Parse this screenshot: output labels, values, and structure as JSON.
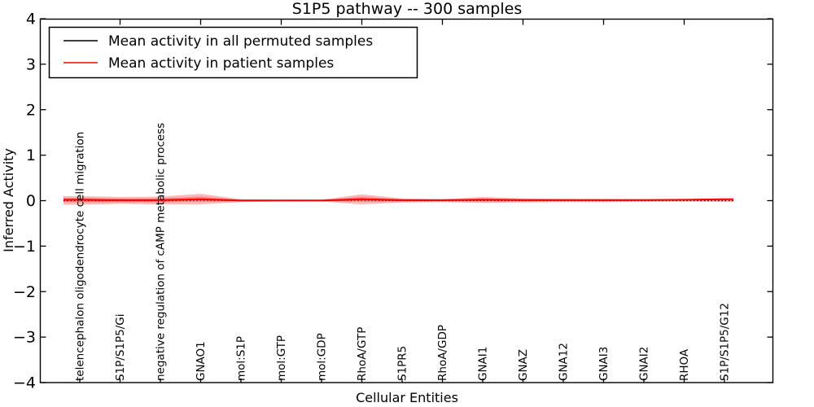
{
  "chart_data": {
    "type": "line",
    "title": "S1P5 pathway -- 300 samples",
    "xlabel": "Cellular Entities",
    "ylabel": "Inferred Activity",
    "ylim": [
      -4,
      4
    ],
    "yticks": [
      4,
      3,
      2,
      1,
      0,
      -1,
      -2,
      -3,
      -4
    ],
    "grid": false,
    "legend_position": "upper left",
    "categories": [
      "telencephalon oligodendrocyte cell migration",
      "S1P/S1P5/Gi",
      "negative regulation of cAMP metabolic process",
      "GNAO1",
      "mol:S1P",
      "mol:GTP",
      "mol:GDP",
      "RhoA/GTP",
      "S1PR5",
      "RhoA/GDP",
      "GNAI1",
      "GNAZ",
      "GNA12",
      "GNAI3",
      "GNAI2",
      "RHOA",
      "S1P/S1P5/G12"
    ],
    "series": [
      {
        "name": "Mean activity in all permuted samples",
        "color": "#000000",
        "style": "dotted",
        "values": [
          0,
          0,
          0,
          0.01,
          0,
          0,
          0,
          0.01,
          0,
          0,
          0,
          0,
          0,
          0,
          0,
          0,
          0
        ]
      },
      {
        "name": "Mean activity in patient samples",
        "color": "#ff0000",
        "style": "solid",
        "values": [
          0.02,
          0.01,
          0.01,
          0.03,
          0.005,
          0.005,
          0.005,
          0.03,
          0.01,
          0.01,
          0.02,
          0.015,
          0.015,
          0.015,
          0.015,
          0.02,
          0.03
        ]
      }
    ],
    "band": {
      "series": "Mean activity in patient samples",
      "color": "#ff0000",
      "opacity": 0.28,
      "upper": [
        0.1,
        0.08,
        0.09,
        0.15,
        0.03,
        0.02,
        0.02,
        0.14,
        0.05,
        0.03,
        0.08,
        0.05,
        0.04,
        0.035,
        0.03,
        0.03,
        0.05
      ],
      "lower": [
        -0.09,
        -0.07,
        -0.08,
        -0.08,
        -0.03,
        -0.02,
        -0.02,
        -0.08,
        -0.04,
        -0.03,
        -0.05,
        -0.04,
        -0.03,
        -0.03,
        -0.02,
        -0.02,
        -0.03
      ]
    }
  }
}
